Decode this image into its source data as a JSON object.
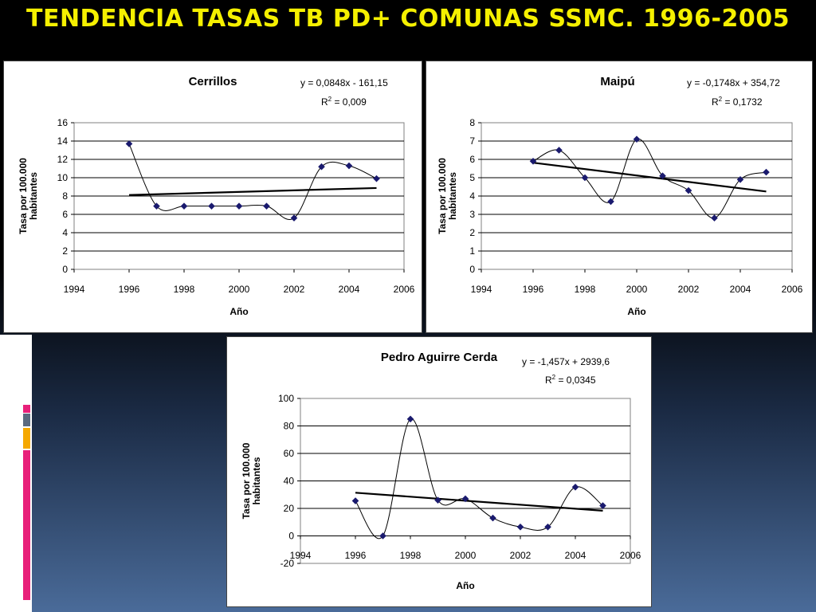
{
  "slide": {
    "title": "TENDENCIA TASAS TB PD+ COMUNAS SSMC. 1996-2005",
    "accent_colors": [
      "#e8207a",
      "#5a6a80",
      "#f5a800",
      "#e8207a"
    ]
  },
  "chart_data": [
    {
      "type": "scatter",
      "title": "Cerrillos",
      "xlabel": "Año",
      "ylabel": "Tasa por 100.000 habitantes",
      "equation": "y = 0,0848x - 161,15",
      "r2_prefix": "R",
      "r2_exp": "2",
      "r2_value": " = 0,009",
      "xlim": [
        1994,
        2006
      ],
      "ylim": [
        0,
        16
      ],
      "xticks": [
        1994,
        1996,
        1998,
        2000,
        2002,
        2004,
        2006
      ],
      "yticks": [
        0,
        2,
        4,
        6,
        8,
        10,
        12,
        14,
        16
      ],
      "x": [
        1996,
        1997,
        1998,
        1999,
        2000,
        2001,
        2002,
        2003,
        2004,
        2005
      ],
      "y": [
        13.7,
        6.9,
        6.9,
        6.9,
        6.9,
        6.9,
        5.6,
        11.2,
        11.3,
        9.9
      ],
      "trend": {
        "slope": 0.0848,
        "intercept": -161.15
      },
      "grid": "horizontal",
      "marker_color": "#1a1a6e"
    },
    {
      "type": "scatter",
      "title": "Maipú",
      "xlabel": "Año",
      "ylabel": "Tasa por 100.000 habitantes",
      "equation": "y = -0,1748x + 354,72",
      "r2_prefix": "R",
      "r2_exp": "2",
      "r2_value": " = 0,1732",
      "xlim": [
        1994,
        2006
      ],
      "ylim": [
        0,
        8
      ],
      "xticks": [
        1994,
        1996,
        1998,
        2000,
        2002,
        2004,
        2006
      ],
      "yticks": [
        0,
        1,
        2,
        3,
        4,
        5,
        6,
        7,
        8
      ],
      "x": [
        1996,
        1997,
        1998,
        1999,
        2000,
        2001,
        2002,
        2003,
        2004,
        2005
      ],
      "y": [
        5.9,
        6.5,
        5.0,
        3.7,
        7.1,
        5.1,
        4.3,
        2.8,
        4.9,
        5.3
      ],
      "trend": {
        "slope": -0.1748,
        "intercept": 354.72
      },
      "grid": "horizontal",
      "marker_color": "#1a1a6e"
    },
    {
      "type": "scatter",
      "title": "Pedro Aguirre Cerda",
      "xlabel": "Año",
      "ylabel": "Tasa por 100.000 habitantes",
      "equation": "y = -1,457x + 2939,6",
      "r2_prefix": "R",
      "r2_exp": "2",
      "r2_value": " = 0,0345",
      "xlim": [
        1994,
        2006
      ],
      "ylim": [
        -20,
        100
      ],
      "xticks": [
        1994,
        1996,
        1998,
        2000,
        2002,
        2004,
        2006
      ],
      "yticks": [
        -20,
        0,
        20,
        40,
        60,
        80,
        100
      ],
      "x": [
        1996,
        1997,
        1998,
        1999,
        2000,
        2001,
        2002,
        2003,
        2004,
        2005
      ],
      "y": [
        25.5,
        0,
        85,
        26,
        27,
        13,
        6.5,
        6.5,
        35.5,
        22
      ],
      "trend": {
        "slope": -1.457,
        "intercept": 2939.6
      },
      "grid": "horizontal",
      "marker_color": "#1a1a6e"
    }
  ]
}
